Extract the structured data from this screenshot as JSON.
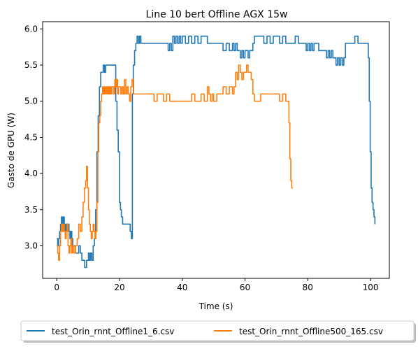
{
  "chart_data": {
    "type": "line",
    "title": "Line 10 bert Offline AGX 15w",
    "xlabel": "Time (s)",
    "ylabel": "Gasto de GPU (W)",
    "xlim": [
      -4.5,
      106
    ],
    "ylim": [
      2.55,
      6.1
    ],
    "x_ticks": [
      0,
      20,
      40,
      60,
      80,
      100
    ],
    "y_ticks": [
      3.0,
      3.5,
      4.0,
      4.5,
      5.0,
      5.5,
      6.0
    ],
    "x_tick_labels": [
      "0",
      "20",
      "40",
      "60",
      "80",
      "100"
    ],
    "y_tick_labels": [
      "3.0",
      "3.5",
      "4.0",
      "4.5",
      "5.0",
      "5.5",
      "6.0"
    ],
    "legend_position": "bottom-center outside",
    "grid": false,
    "series": [
      {
        "name": "test_Orin_rnnt_Offline1_6.csv",
        "color": "#1f77b4",
        "x": [
          0,
          0.3,
          0.6,
          0.9,
          1.2,
          1.5,
          1.8,
          2.1,
          2.4,
          2.7,
          3.0,
          3.3,
          3.6,
          3.9,
          4.2,
          4.5,
          4.8,
          5.1,
          5.5,
          6.0,
          6.5,
          7.0,
          7.5,
          8.0,
          8.5,
          8.9,
          9.2,
          9.5,
          9.8,
          10.1,
          10.4,
          10.8,
          11.2,
          11.6,
          12.0,
          12.4,
          12.8,
          13.2,
          13.6,
          14.0,
          14.4,
          14.8,
          15.2,
          15.6,
          16.0,
          16.4,
          16.8,
          17.2,
          17.6,
          18.0,
          18.4,
          18.8,
          19.2,
          19.6,
          20.0,
          20.3,
          20.6,
          21.0,
          21.5,
          22.0,
          22.5,
          23.0,
          23.4,
          23.8,
          24.1,
          24.4,
          24.8,
          25.2,
          25.6,
          26.0,
          26.4,
          26.8,
          27.2,
          28.0,
          29.0,
          30.0,
          31.0,
          32.0,
          33.0,
          34.0,
          35.0,
          35.5,
          36.0,
          36.5,
          37.0,
          37.5,
          38.0,
          38.5,
          39.0,
          39.5,
          40.0,
          41.0,
          42.0,
          43.0,
          44.0,
          45.0,
          46.0,
          47.0,
          48.0,
          49.0,
          50.0,
          51.0,
          52.0,
          53.0,
          54.0,
          55.0,
          56.0,
          56.5,
          57.0,
          57.5,
          58.0,
          58.5,
          59.0,
          59.5,
          60.0,
          60.5,
          61.0,
          61.5,
          62.0,
          62.5,
          63.0,
          63.5,
          64.0,
          65.0,
          66.0,
          67.0,
          68.0,
          69.0,
          70.0,
          71.0,
          72.0,
          73.0,
          74.0,
          75.0,
          76.0,
          77.0,
          78.0,
          78.5,
          79.0,
          79.5,
          80.0,
          80.5,
          81.0,
          81.5,
          82.0,
          82.5,
          83.0,
          83.5,
          84.0,
          84.5,
          85.0,
          85.5,
          86.0,
          86.5,
          87.0,
          87.5,
          88.0,
          88.5,
          89.0,
          89.5,
          90.0,
          90.5,
          91.0,
          91.5,
          92.0,
          93.0,
          94.0,
          94.5,
          95.0,
          95.5,
          96.0,
          97.0,
          98.0,
          98.5,
          99.0,
          99.3,
          99.6,
          99.9,
          100.2,
          100.5,
          100.8,
          101.1,
          101.4
        ],
        "values": [
          3.1,
          3.0,
          3.1,
          3.2,
          3.3,
          3.4,
          3.3,
          3.4,
          3.3,
          3.2,
          3.3,
          3.2,
          3.3,
          3.2,
          3.1,
          3.2,
          3.1,
          3.0,
          3.0,
          2.9,
          2.9,
          3.0,
          2.9,
          2.8,
          2.8,
          2.7,
          2.7,
          2.8,
          2.8,
          2.9,
          2.8,
          2.9,
          2.8,
          3.0,
          3.1,
          3.5,
          4.3,
          4.8,
          5.2,
          5.4,
          5.4,
          5.5,
          5.4,
          5.5,
          5.5,
          5.5,
          5.5,
          5.5,
          5.5,
          5.5,
          5.5,
          5.0,
          4.6,
          4.3,
          3.6,
          3.5,
          3.4,
          3.3,
          3.3,
          3.3,
          3.3,
          3.3,
          3.2,
          3.1,
          5.1,
          5.5,
          5.7,
          5.8,
          5.9,
          5.8,
          5.9,
          5.8,
          5.8,
          5.8,
          5.8,
          5.8,
          5.8,
          5.8,
          5.8,
          5.8,
          5.8,
          5.7,
          5.8,
          5.7,
          5.9,
          5.8,
          5.9,
          5.8,
          5.9,
          5.8,
          5.9,
          5.8,
          5.9,
          5.8,
          5.9,
          5.8,
          5.9,
          5.9,
          5.8,
          5.8,
          5.8,
          5.8,
          5.8,
          5.7,
          5.8,
          5.7,
          5.8,
          5.7,
          5.8,
          5.7,
          5.7,
          5.6,
          5.7,
          5.6,
          5.7,
          5.7,
          5.6,
          5.7,
          5.7,
          5.8,
          5.9,
          5.9,
          5.9,
          5.9,
          5.8,
          5.9,
          5.8,
          5.9,
          5.9,
          5.8,
          5.9,
          5.8,
          5.8,
          5.8,
          5.9,
          5.8,
          5.8,
          5.8,
          5.8,
          5.7,
          5.8,
          5.7,
          5.8,
          5.7,
          5.8,
          5.8,
          5.8,
          5.7,
          5.7,
          5.7,
          5.7,
          5.7,
          5.6,
          5.7,
          5.6,
          5.7,
          5.6,
          5.6,
          5.5,
          5.6,
          5.5,
          5.6,
          5.5,
          5.6,
          5.8,
          5.8,
          5.8,
          5.8,
          5.9,
          5.9,
          5.8,
          5.8,
          5.8,
          5.8,
          5.8,
          5.6,
          5.0,
          4.3,
          3.8,
          3.6,
          3.5,
          3.4,
          3.3
        ],
        "label_x": "",
        "label_y": ""
      },
      {
        "name": "test_Orin_rnnt_Offline500_165.csv",
        "color": "#ff7f0e",
        "x": [
          0,
          0.3,
          0.6,
          0.9,
          1.2,
          1.5,
          1.8,
          2.1,
          2.4,
          2.7,
          3.0,
          3.3,
          3.6,
          3.9,
          4.2,
          4.5,
          4.8,
          5.1,
          5.5,
          6.0,
          6.5,
          7.0,
          7.5,
          8.0,
          8.4,
          8.8,
          9.2,
          9.5,
          9.8,
          10.1,
          10.4,
          10.7,
          11.0,
          11.3,
          11.6,
          11.9,
          12.2,
          12.5,
          12.8,
          13.1,
          13.4,
          13.7,
          14.0,
          14.3,
          14.6,
          14.9,
          15.2,
          15.5,
          15.8,
          16.1,
          16.4,
          16.7,
          17.0,
          17.3,
          17.6,
          17.9,
          18.2,
          18.5,
          18.8,
          19.1,
          19.4,
          19.7,
          20.0,
          20.4,
          20.8,
          21.2,
          21.6,
          22.0,
          22.4,
          22.8,
          23.2,
          23.6,
          24.0,
          24.5,
          25.0,
          26.0,
          27.0,
          28.0,
          29.0,
          30.0,
          31.0,
          32.0,
          33.0,
          34.0,
          35.0,
          36.0,
          37.0,
          38.0,
          39.0,
          40.0,
          41.0,
          42.0,
          43.0,
          44.0,
          45.0,
          46.0,
          47.0,
          48.0,
          48.5,
          49.0,
          49.5,
          50.0,
          51.0,
          52.0,
          53.0,
          54.0,
          55.0,
          56.0,
          56.5,
          57.0,
          57.5,
          58.0,
          58.5,
          59.0,
          59.5,
          60.0,
          60.5,
          61.0,
          61.5,
          62.0,
          62.5,
          63.0,
          64.0,
          65.0,
          66.0,
          67.0,
          68.0,
          69.0,
          70.0,
          71.0,
          72.0,
          73.0,
          73.5,
          74.0,
          74.3,
          74.6,
          74.9,
          75.2
        ],
        "values": [
          3.0,
          2.9,
          2.8,
          3.0,
          3.2,
          3.3,
          3.2,
          3.3,
          3.2,
          3.1,
          3.2,
          3.3,
          3.0,
          2.9,
          3.0,
          3.1,
          2.9,
          3.0,
          2.9,
          3.0,
          3.1,
          3.3,
          3.2,
          3.4,
          3.6,
          3.8,
          3.9,
          4.1,
          3.8,
          3.5,
          3.3,
          3.2,
          3.1,
          3.2,
          3.3,
          3.2,
          3.1,
          3.2,
          3.6,
          4.3,
          4.7,
          4.8,
          5.0,
          5.1,
          5.2,
          5.1,
          5.2,
          5.1,
          5.2,
          5.1,
          5.2,
          5.1,
          5.2,
          5.1,
          5.2,
          5.2,
          5.1,
          5.3,
          5.2,
          5.3,
          5.1,
          5.2,
          5.2,
          5.1,
          5.2,
          5.1,
          5.3,
          5.1,
          5.2,
          5.1,
          5.0,
          5.2,
          5.3,
          5.1,
          5.1,
          5.1,
          5.1,
          5.1,
          5.1,
          5.1,
          5.0,
          5.1,
          5.1,
          5.0,
          5.1,
          5.0,
          5.0,
          5.0,
          5.0,
          5.0,
          5.0,
          5.0,
          5.1,
          5.0,
          5.0,
          5.1,
          5.0,
          5.2,
          5.1,
          5.0,
          5.1,
          5.0,
          5.1,
          5.1,
          5.2,
          5.1,
          5.2,
          5.1,
          5.2,
          5.4,
          5.3,
          5.5,
          5.4,
          5.3,
          5.4,
          5.4,
          5.5,
          5.4,
          5.4,
          5.3,
          5.1,
          5.0,
          5.0,
          5.1,
          5.1,
          5.1,
          5.1,
          5.1,
          5.1,
          5.0,
          5.1,
          5.0,
          5.0,
          4.7,
          4.2,
          3.9,
          3.8,
          3.8
        ],
        "label_x": "",
        "label_y": ""
      }
    ]
  }
}
